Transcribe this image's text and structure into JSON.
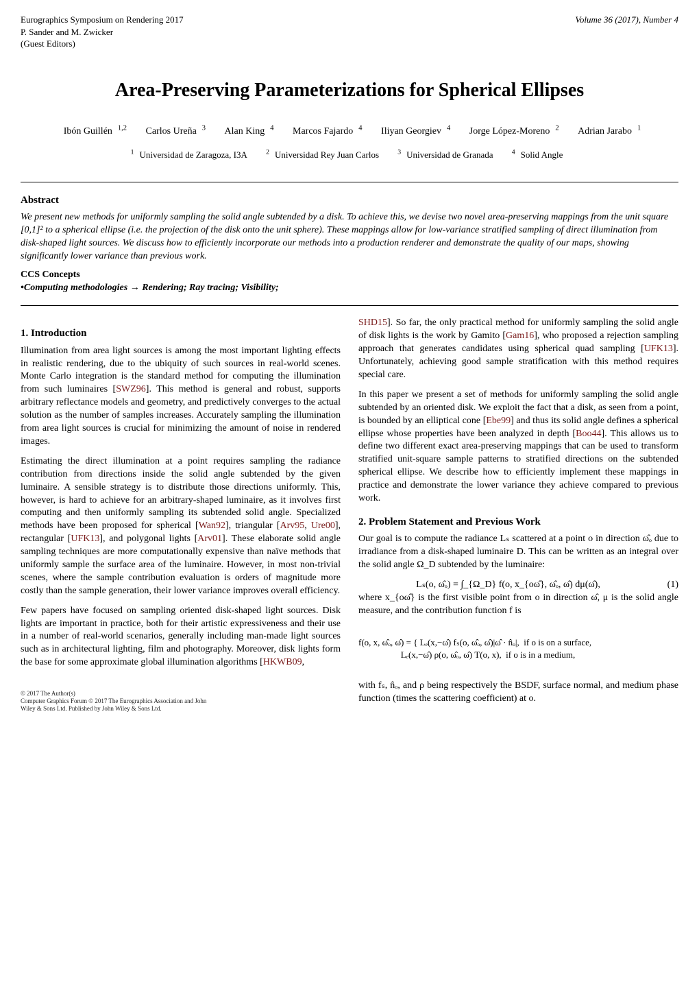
{
  "header": {
    "venue_line1": "Eurographics Symposium on Rendering 2017",
    "venue_line2": "P. Sander and M. Zwicker",
    "venue_line3": "(Guest Editors)",
    "volume": "Volume 36 (2017), Number 4"
  },
  "title": "Area-Preserving Parameterizations for Spherical Ellipses",
  "authors": [
    {
      "name": "Ibón Guillén",
      "aff": "1,2"
    },
    {
      "name": "Carlos Ureña",
      "aff": "3"
    },
    {
      "name": "Alan King",
      "aff": "4"
    },
    {
      "name": "Marcos Fajardo",
      "aff": "4"
    },
    {
      "name": "Iliyan Georgiev",
      "aff": "4"
    },
    {
      "name": "Jorge López-Moreno",
      "aff": "2"
    },
    {
      "name": "Adrian Jarabo",
      "aff": "1"
    }
  ],
  "affiliations": [
    {
      "num": "1",
      "text": "Universidad de Zaragoza, I3A"
    },
    {
      "num": "2",
      "text": "Universidad Rey Juan Carlos"
    },
    {
      "num": "3",
      "text": "Universidad de Granada"
    },
    {
      "num": "4",
      "text": "Solid Angle"
    }
  ],
  "abstract": {
    "head": "Abstract",
    "body": "We present new methods for uniformly sampling the solid angle subtended by a disk. To achieve this, we devise two novel area-preserving mappings from the unit square [0,1]² to a spherical ellipse (i.e. the projection of the disk onto the unit sphere). These mappings allow for low-variance stratified sampling of direct illumination from disk-shaped light sources. We discuss how to efficiently incorporate our methods into a production renderer and demonstrate the quality of our maps, showing significantly lower variance than previous work."
  },
  "ccs": {
    "head": "CCS Concepts",
    "body_prefix": "•Computing methodologies →",
    "body_rest": " Rendering; Ray tracing; Visibility;"
  },
  "sections": {
    "intro_head": "1. Introduction",
    "intro_p1a": "Illumination from area light sources is among the most important lighting effects in realistic rendering, due to the ubiquity of such sources in real-world scenes. Monte Carlo integration is the standard method for computing the illumination from such luminaires [",
    "ref_swz96": "SWZ96",
    "intro_p1b": "]. This method is general and robust, supports arbitrary reflectance models and geometry, and predictively converges to the actual solution as the number of samples increases. Accurately sampling the illumination from area light sources is crucial for minimizing the amount of noise in rendered images.",
    "intro_p2a": "Estimating the direct illumination at a point requires sampling the radiance contribution from directions inside the solid angle subtended by the given luminaire. A sensible strategy is to distribute those directions uniformly. This, however, is hard to achieve for an arbitrary-shaped luminaire, as it involves first computing and then uniformly sampling its subtended solid angle. Specialized methods have been proposed for spherical [",
    "ref_wan92": "Wan92",
    "intro_p2b": "], triangular [",
    "ref_arv95": "Arv95",
    "ref_ure00": "Ure00",
    "intro_p2c": "], rectangular [",
    "ref_ufk13": "UFK13",
    "intro_p2d": "], and polygonal lights [",
    "ref_arv01": "Arv01",
    "intro_p2e": "]. These elaborate solid angle sampling techniques are more computationally expensive than naïve methods that uniformly sample the surface area of the luminaire. However, in most non-trivial scenes, where the sample contribution evaluation is orders of magnitude more costly than the sample generation, their lower variance improves overall efficiency.",
    "intro_p3a": "Few papers have focused on sampling oriented disk-shaped light sources. Disk lights are important in practice, both for their artistic expressiveness and their use in a number of real-world scenarios, generally including man-made light sources such as in architectural lighting, film and photography. Moreover, disk lights form the base for some approximate global illumination algorithms [",
    "ref_hkwb09": "HKWB09",
    "intro_p3b": ", ",
    "ref_shd15": "SHD15",
    "intro_p3c": "]. So far, the only practical method for uniformly sampling the solid angle of disk lights is the work by Gamito [",
    "ref_gam16": "Gam16",
    "intro_p3d": "], who proposed a rejection sampling approach that generates candidates using spherical quad sampling [",
    "intro_p3e": "]. Unfortunately, achieving good sample stratification with this method requires special care.",
    "intro_p4a": "In this paper we present a set of methods for uniformly sampling the solid angle subtended by an oriented disk. We exploit the fact that a disk, as seen from a point, is bounded by an elliptical cone [",
    "ref_ebe99": "Ebe99",
    "intro_p4b": "] and thus its solid angle defines a spherical ellipse whose properties have been analyzed in depth [",
    "ref_boo44": "Boo44",
    "intro_p4c": "]. This allows us to define two different exact area-preserving mappings that can be used to transform stratified unit-square sample patterns to stratified directions on the subtended spherical ellipse. We describe how to efficiently implement these mappings in practice and demonstrate the lower variance they achieve compared to previous work.",
    "prob_head": "2. Problem Statement and Previous Work",
    "prob_p1": "Our goal is to compute the radiance Lₛ scattered at a point o in direction ω̂ₒ due to irradiance from a disk-shaped luminaire D. This can be written as an integral over the solid angle Ω_D subtended by the luminaire:",
    "eq1": "Lₛ(o, ω̂ₒ) = ∫_{Ω_D} f(o, x_{oω̂}, ω̂ₒ, ω̂) dμ(ω̂),",
    "eq1_num": "(1)",
    "prob_p2": "where x_{oω̂} is the first visible point from o in direction ω̂, μ is the solid angle measure, and the contribution function f is",
    "eq2_top": "f(o, x, ω̂ₒ, ω̂) = { Lₑ(x,−ω̂) fₛ(o, ω̂ₒ, ω̂)|ω̂ · n̂ₒ|,  if o is on a surface,",
    "eq2_bot": "                   Lₑ(x,−ω̂) ρ(o, ω̂ₒ, ω̂) T(o, x),  if o is in a medium,",
    "prob_p3": "with fₛ, n̂ₒ, and ρ being respectively the BSDF, surface normal, and medium phase function (times the scattering coefficient) at o."
  },
  "footer": {
    "copyright": "© 2017 The Author(s)",
    "line2": "Computer Graphics Forum © 2017 The Eurographics Association and John",
    "line3": "Wiley & Sons Ltd. Published by John Wiley & Sons Ltd."
  },
  "colors": {
    "ref": "#7a1d1d",
    "text": "#000000",
    "background": "#ffffff"
  },
  "fonts": {
    "body_family": "Times New Roman, serif",
    "body_size_pt": 10,
    "title_size_pt": 20,
    "section_size_pt": 11
  }
}
